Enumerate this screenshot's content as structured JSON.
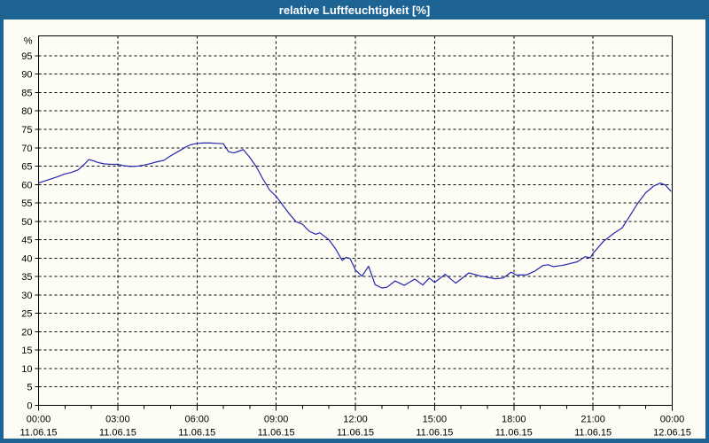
{
  "window": {
    "title": "relative Luftfeuchtigkeit [%]"
  },
  "colors": {
    "frame": "#1d6494",
    "titlebar": "#1d6494",
    "title_text": "#ffffff",
    "plot_background": "#fdfdf6",
    "grid": "#000000",
    "axis": "#000000",
    "tick_label": "#000000",
    "line": "#2626ae"
  },
  "chart_data": {
    "type": "line",
    "title": "relative Luftfeuchtigkeit [%]",
    "ylabel": "%",
    "xlabel": "",
    "grid": true,
    "legend_position": "none",
    "ylim": [
      0,
      100
    ],
    "y_tick_step": 5,
    "y_ticks": [
      0,
      5,
      10,
      15,
      20,
      25,
      30,
      35,
      40,
      45,
      50,
      55,
      60,
      65,
      70,
      75,
      80,
      85,
      90,
      95
    ],
    "x_range_hours": [
      0,
      24
    ],
    "minor_x_tick_every_hours": 1,
    "x_ticks": [
      {
        "hour": 0,
        "time": "00:00",
        "date": "11.06.15"
      },
      {
        "hour": 3,
        "time": "03:00",
        "date": "11.06.15"
      },
      {
        "hour": 6,
        "time": "06:00",
        "date": "11.06.15"
      },
      {
        "hour": 9,
        "time": "09:00",
        "date": "11.06.15"
      },
      {
        "hour": 12,
        "time": "12:00",
        "date": "11.06.15"
      },
      {
        "hour": 15,
        "time": "15:00",
        "date": "11.06.15"
      },
      {
        "hour": 18,
        "time": "18:00",
        "date": "11.06.15"
      },
      {
        "hour": 21,
        "time": "21:00",
        "date": "11.06.15"
      },
      {
        "hour": 24,
        "time": "00:00",
        "date": "12.06.15"
      }
    ],
    "series": [
      {
        "name": "relative Luftfeuchtigkeit",
        "unit": "%",
        "color": "#2626ae",
        "points": [
          [
            0,
            60.4
          ],
          [
            0.25,
            61.0
          ],
          [
            0.5,
            61.6
          ],
          [
            0.75,
            62.2
          ],
          [
            1,
            62.9
          ],
          [
            1.25,
            63.3
          ],
          [
            1.5,
            64.0
          ],
          [
            1.75,
            65.6
          ],
          [
            1.9,
            66.8
          ],
          [
            2.1,
            66.4
          ],
          [
            2.25,
            66.0
          ],
          [
            2.5,
            65.6
          ],
          [
            2.75,
            65.5
          ],
          [
            3,
            65.5
          ],
          [
            3.25,
            65.1
          ],
          [
            3.5,
            64.9
          ],
          [
            3.75,
            65.0
          ],
          [
            4,
            65.3
          ],
          [
            4.25,
            65.7
          ],
          [
            4.5,
            66.2
          ],
          [
            4.75,
            66.6
          ],
          [
            5,
            67.8
          ],
          [
            5.25,
            68.8
          ],
          [
            5.5,
            69.9
          ],
          [
            5.75,
            70.8
          ],
          [
            6,
            71.2
          ],
          [
            6.25,
            71.3
          ],
          [
            6.5,
            71.3
          ],
          [
            6.75,
            71.2
          ],
          [
            7,
            71.1
          ],
          [
            7.2,
            68.9
          ],
          [
            7.4,
            68.6
          ],
          [
            7.6,
            69.1
          ],
          [
            7.75,
            69.5
          ],
          [
            8,
            67.4
          ],
          [
            8.25,
            64.8
          ],
          [
            8.5,
            61.5
          ],
          [
            8.75,
            58.5
          ],
          [
            9,
            56.8
          ],
          [
            9.25,
            54.4
          ],
          [
            9.5,
            52.0
          ],
          [
            9.75,
            49.9
          ],
          [
            10,
            49.2
          ],
          [
            10.25,
            47.3
          ],
          [
            10.5,
            46.5
          ],
          [
            10.65,
            46.9
          ],
          [
            11,
            45.0
          ],
          [
            11.25,
            42.5
          ],
          [
            11.5,
            39.4
          ],
          [
            11.65,
            40.2
          ],
          [
            11.8,
            39.9
          ],
          [
            12,
            36.8
          ],
          [
            12.25,
            35.1
          ],
          [
            12.5,
            37.8
          ],
          [
            12.75,
            32.8
          ],
          [
            13,
            31.9
          ],
          [
            13.2,
            32.1
          ],
          [
            13.5,
            33.8
          ],
          [
            13.85,
            32.6
          ],
          [
            14.25,
            34.3
          ],
          [
            14.55,
            32.7
          ],
          [
            14.8,
            34.6
          ],
          [
            15,
            33.4
          ],
          [
            15.4,
            35.6
          ],
          [
            15.8,
            33.2
          ],
          [
            16.3,
            36.0
          ],
          [
            16.7,
            35.2
          ],
          [
            17,
            34.8
          ],
          [
            17.3,
            34.4
          ],
          [
            17.6,
            34.6
          ],
          [
            17.9,
            36.2
          ],
          [
            18.1,
            35.4
          ],
          [
            18.5,
            35.5
          ],
          [
            18.8,
            36.5
          ],
          [
            19.1,
            38.0
          ],
          [
            19.3,
            38.2
          ],
          [
            19.5,
            37.7
          ],
          [
            19.8,
            38.0
          ],
          [
            20,
            38.3
          ],
          [
            20.4,
            39.0
          ],
          [
            20.7,
            40.4
          ],
          [
            20.9,
            40.1
          ],
          [
            21,
            41.3
          ],
          [
            21.4,
            44.6
          ],
          [
            21.8,
            46.8
          ],
          [
            22.1,
            48.2
          ],
          [
            22.4,
            51.5
          ],
          [
            22.7,
            55.0
          ],
          [
            23,
            57.8
          ],
          [
            23.3,
            59.6
          ],
          [
            23.55,
            60.4
          ],
          [
            23.75,
            59.8
          ],
          [
            23.95,
            58.2
          ]
        ]
      }
    ]
  }
}
